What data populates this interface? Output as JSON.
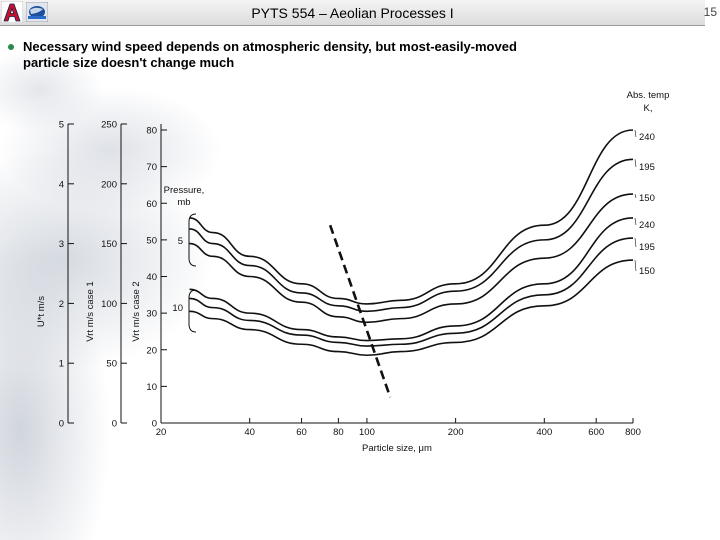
{
  "header": {
    "title": "PYTS 554 – Aeolian Processes I",
    "page_number": "15"
  },
  "bullet": {
    "text": "Necessary wind speed depends on atmospheric density, but most-easily-moved particle size doesn't change much"
  },
  "chart_data": {
    "type": "line",
    "title": "",
    "xlabel": "Particle size, μm",
    "x_scale": "log",
    "xlim": [
      20,
      800
    ],
    "x_ticks": [
      {
        "value": 20,
        "label": "20"
      },
      {
        "value": 40,
        "label": "40"
      },
      {
        "value": 60,
        "label": "60"
      },
      {
        "value": 80,
        "label": "80"
      },
      {
        "value": 100,
        "label": "100"
      },
      {
        "value": 200,
        "label": "200"
      },
      {
        "value": 400,
        "label": "400"
      },
      {
        "value": 600,
        "label": "600"
      },
      {
        "value": 800,
        "label": "800"
      }
    ],
    "y_axes": [
      {
        "id": "u",
        "label": "U*t m/s",
        "ylim": [
          0,
          5
        ],
        "ticks": [
          0,
          1,
          2,
          3,
          4,
          5
        ]
      },
      {
        "id": "v1",
        "label": "Vrt m/s case 1",
        "ylim": [
          0,
          250
        ],
        "ticks": [
          0,
          50,
          100,
          150,
          200,
          250
        ]
      },
      {
        "id": "v2",
        "label": "Vrt m/s case 2",
        "ylim": [
          0,
          80
        ],
        "ticks": [
          0,
          10,
          20,
          30,
          40,
          50,
          60,
          70,
          80
        ]
      }
    ],
    "pressure_label": "Pressure, mb",
    "pressure_groups": [
      {
        "label": "5",
        "members": [
          0,
          1,
          2
        ]
      },
      {
        "label": "10",
        "members": [
          3,
          4,
          5
        ]
      }
    ],
    "temp_heading": "Abs. temp, K",
    "series": [
      {
        "name": "5 mb, 240 K",
        "pressure": "5",
        "temp": "240",
        "x": [
          25,
          30,
          40,
          60,
          80,
          100,
          130,
          200,
          400,
          800
        ],
        "y": [
          56,
          52,
          45.5,
          38,
          34,
          32.5,
          33.5,
          38,
          54,
          80
        ]
      },
      {
        "name": "5 mb, 195 K",
        "pressure": "5",
        "temp": "195",
        "x": [
          25,
          30,
          40,
          60,
          80,
          100,
          130,
          200,
          400,
          800
        ],
        "y": [
          53,
          49,
          43,
          35.5,
          32,
          30.5,
          31.5,
          36,
          50,
          72
        ]
      },
      {
        "name": "5 mb, 150 K",
        "pressure": "5",
        "temp": "150",
        "x": [
          25,
          30,
          40,
          60,
          80,
          100,
          130,
          200,
          400,
          800
        ],
        "y": [
          49,
          45.5,
          40,
          33,
          29,
          27.5,
          28.5,
          32.5,
          45,
          62.5
        ]
      },
      {
        "name": "10 mb, 240 K",
        "pressure": "10",
        "temp": "240",
        "x": [
          25,
          30,
          40,
          60,
          80,
          100,
          130,
          200,
          400,
          800
        ],
        "y": [
          36.5,
          34,
          30,
          25.5,
          23.5,
          22.5,
          23,
          26.5,
          38,
          56
        ]
      },
      {
        "name": "10 mb, 195 K",
        "pressure": "10",
        "temp": "195",
        "x": [
          25,
          30,
          40,
          60,
          80,
          100,
          130,
          200,
          400,
          800
        ],
        "y": [
          34,
          31.5,
          28,
          24,
          22,
          21,
          21.5,
          24.5,
          35,
          50.5
        ]
      },
      {
        "name": "10 mb, 150 K",
        "pressure": "10",
        "temp": "150",
        "x": [
          25,
          30,
          40,
          60,
          80,
          100,
          130,
          200,
          400,
          800
        ],
        "y": [
          30.5,
          28.5,
          25.5,
          21.5,
          19.5,
          18.5,
          19.5,
          22,
          32,
          44.5
        ]
      }
    ],
    "minimum_line": {
      "style": "dashed",
      "x": [
        75,
        120
      ],
      "y": [
        54,
        7
      ]
    }
  }
}
